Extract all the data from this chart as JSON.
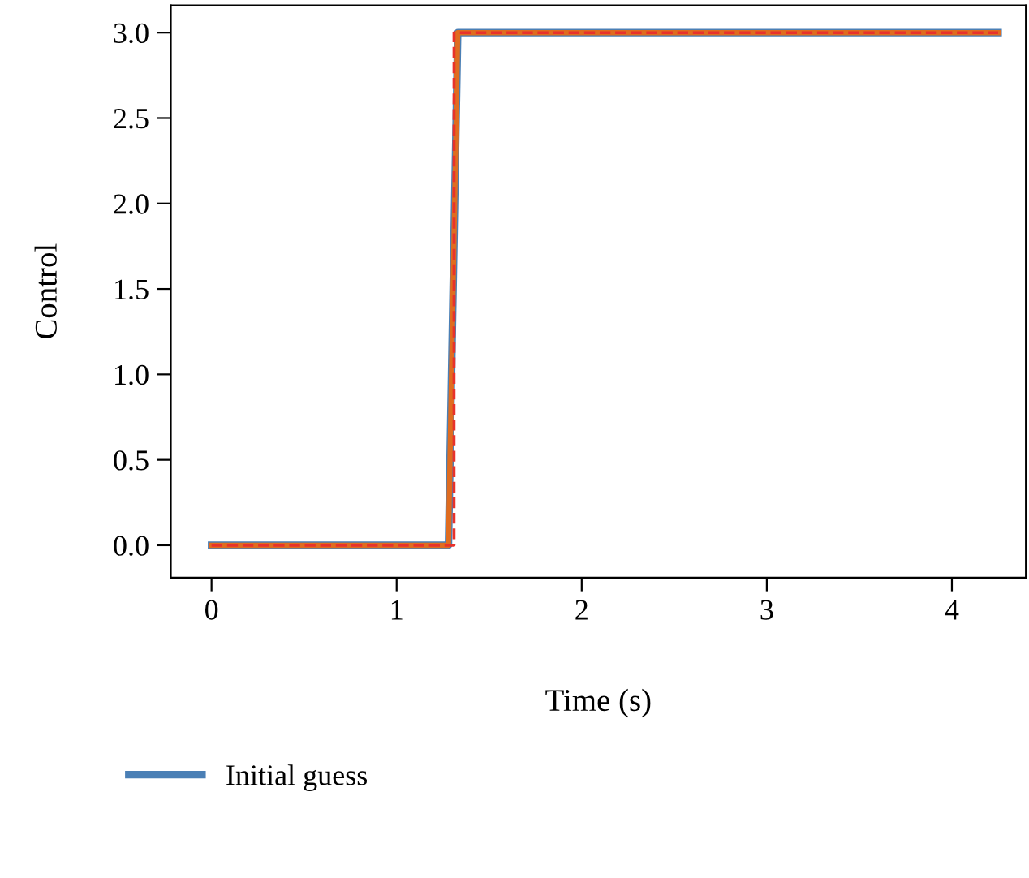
{
  "chart_data": {
    "type": "line",
    "xlabel": "Time (s)",
    "ylabel": "Control",
    "xlim": [
      -0.22,
      4.4
    ],
    "ylim": [
      -0.19,
      3.16
    ],
    "xticks": [
      0,
      1,
      2,
      3,
      4
    ],
    "yticks": [
      {
        "value": 0,
        "label": "0.0"
      },
      {
        "value": 0.5,
        "label": "0.5"
      },
      {
        "value": 1,
        "label": "1.0"
      },
      {
        "value": 1.5,
        "label": "1.5"
      },
      {
        "value": 2,
        "label": "2.0"
      },
      {
        "value": 2.5,
        "label": "2.5"
      },
      {
        "value": 3,
        "label": "3.0"
      }
    ],
    "grid": false,
    "legend": "bottom left",
    "series": [
      {
        "name": "Initial guess",
        "color": "#4a7fb5",
        "line_style": "solid",
        "x": [
          0,
          1.28,
          1.33,
          4.25
        ],
        "values": [
          0,
          0,
          3,
          3
        ]
      },
      {
        "color": "#e06c1f",
        "line_style": "solid",
        "x": [
          0,
          1.28,
          1.33,
          4.25
        ],
        "values": [
          0,
          0,
          3,
          3
        ]
      },
      {
        "color": "#e8322b",
        "line_style": "dashed",
        "x": [
          0,
          1.31,
          1.31,
          4.25
        ],
        "values": [
          0,
          0,
          3,
          3
        ]
      }
    ]
  }
}
